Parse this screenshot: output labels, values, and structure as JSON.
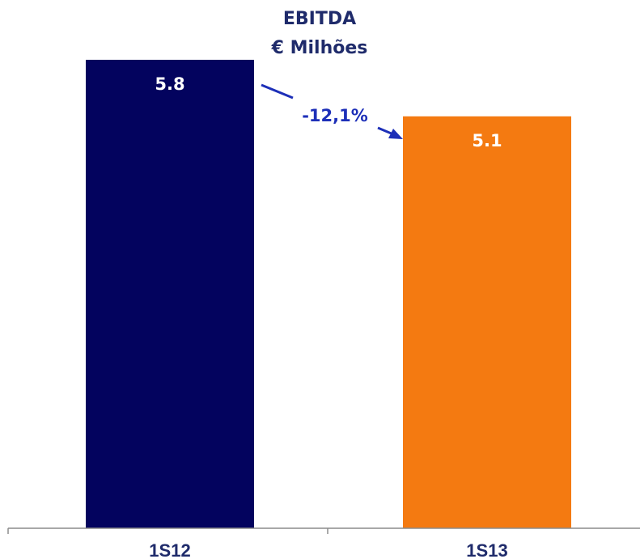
{
  "chart_data": {
    "type": "bar",
    "title": "EBITDA",
    "subtitle": "€ Milhões",
    "categories": [
      "1S12",
      "1S13"
    ],
    "values": [
      5.8,
      5.1
    ],
    "value_labels": [
      "5.8",
      "5.1"
    ],
    "ylim": [
      0,
      6.25
    ],
    "grid": false,
    "legend": "none",
    "annotation": {
      "text": "-12,1%",
      "from": "1S12",
      "to": "1S13"
    },
    "colors": {
      "bars": [
        "#03035e",
        "#f47a11"
      ],
      "title": "#1f2b6b",
      "annotation": "#1d2fb8",
      "ticks": "#1f2b6b",
      "axis": "#8c8c8c"
    }
  }
}
